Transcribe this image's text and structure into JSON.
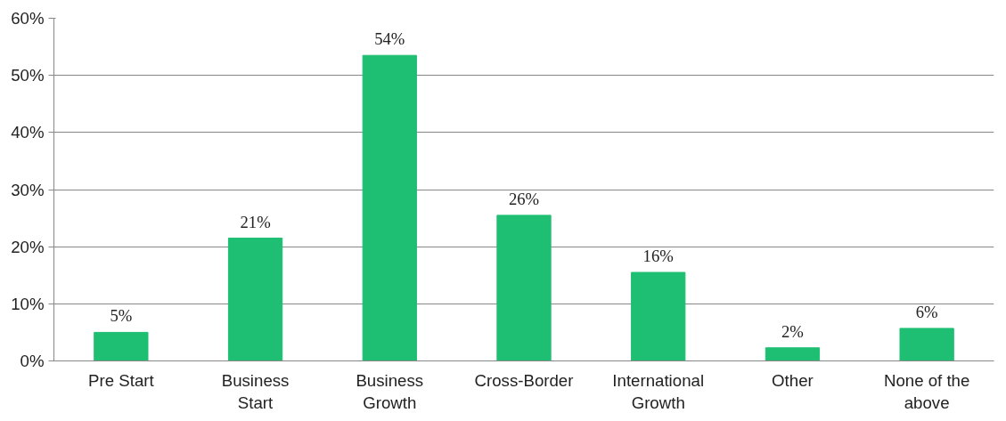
{
  "chart_data": {
    "type": "bar",
    "categories": [
      "Pre Start",
      "Business\nStart",
      "Business\nGrowth",
      "Cross-Border",
      "International\nGrowth",
      "Other",
      "None of the\nabove"
    ],
    "values": [
      5,
      21.5,
      53.5,
      25.5,
      15.5,
      2.3,
      5.7
    ],
    "value_labels": [
      "5%",
      "21%",
      "54%",
      "26%",
      "16%",
      "2%",
      "6%"
    ],
    "color": "#1fbf73",
    "ylim": [
      0,
      60
    ],
    "yticks": [
      {
        "value": 0,
        "label": "0%"
      },
      {
        "value": 10,
        "label": "10%"
      },
      {
        "value": 20,
        "label": "20%"
      },
      {
        "value": 30,
        "label": "30%"
      },
      {
        "value": 40,
        "label": "40%"
      },
      {
        "value": 50,
        "label": "50%"
      },
      {
        "value": 60,
        "label": "60%"
      }
    ],
    "grid": "y"
  }
}
